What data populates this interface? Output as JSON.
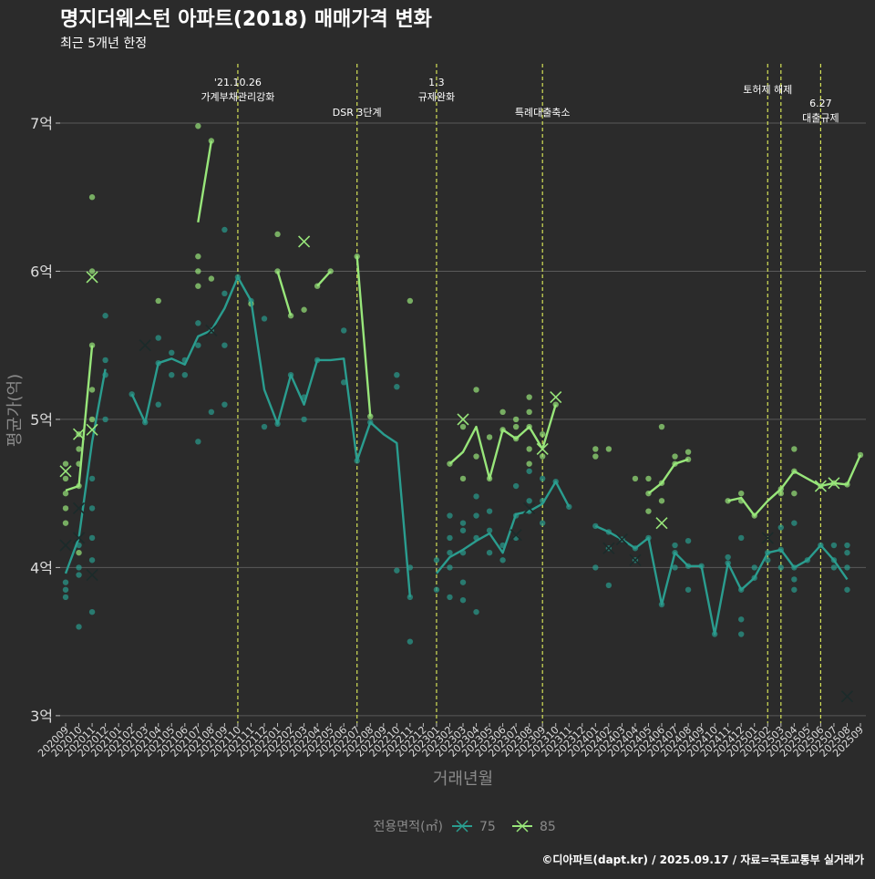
{
  "chart_data": {
    "type": "line",
    "title": "명지더웨스턴 아파트(2018) 매매가격 변화",
    "subtitle": "최근 5개년 한정",
    "xlabel": "거래년월",
    "ylabel": "평균가(억)",
    "ylim": [
      2.95,
      7.4
    ],
    "y_ticks": [
      3,
      4,
      5,
      6,
      7
    ],
    "y_tick_labels": [
      "3억",
      "4억",
      "5억",
      "6억",
      "7억"
    ],
    "categories": [
      "202009",
      "202010",
      "202011",
      "202012",
      "202101",
      "202102",
      "202103",
      "202104",
      "202105",
      "202106",
      "202107",
      "202108",
      "202109",
      "202110",
      "202111",
      "202112",
      "202201",
      "202202",
      "202203",
      "202204",
      "202205",
      "202206",
      "202207",
      "202208",
      "202209",
      "202210",
      "202211",
      "202212",
      "202301",
      "202302",
      "202303",
      "202304",
      "202305",
      "202306",
      "202307",
      "202308",
      "202309",
      "202310",
      "202311",
      "202312",
      "202401",
      "202402",
      "202403",
      "202404",
      "202405",
      "202406",
      "202407",
      "202408",
      "202409",
      "202410",
      "202411",
      "202412",
      "202501",
      "202502",
      "202503",
      "202504",
      "202505",
      "202506",
      "202507",
      "202508",
      "202509"
    ],
    "legend": {
      "title": "전용면적(㎡)",
      "position": "bottom",
      "entries": [
        "75",
        "85"
      ]
    },
    "colors": {
      "75": "#2a9d8f",
      "85": "#98e67a",
      "vline": "#d4e157",
      "grid": "#5a5a5a"
    },
    "series": [
      {
        "name": "75",
        "values": [
          3.96,
          4.2,
          4.85,
          5.34,
          null,
          5.17,
          4.98,
          5.38,
          5.41,
          5.37,
          5.56,
          5.6,
          5.75,
          5.96,
          5.8,
          5.2,
          4.97,
          5.3,
          5.1,
          5.4,
          5.4,
          5.41,
          4.72,
          4.98,
          4.9,
          4.84,
          3.8,
          null,
          3.96,
          4.07,
          4.12,
          4.18,
          4.23,
          4.1,
          4.36,
          4.38,
          4.43,
          4.58,
          4.41,
          null,
          4.28,
          4.24,
          4.19,
          4.13,
          4.2,
          3.75,
          4.1,
          4.01,
          4.01,
          3.55,
          4.03,
          3.85,
          3.93,
          4.1,
          4.12,
          4.0,
          4.05,
          4.15,
          4.05,
          3.92,
          null
        ]
      },
      {
        "name": "85",
        "values": [
          4.52,
          4.55,
          5.5,
          null,
          null,
          null,
          null,
          5.8,
          null,
          null,
          6.33,
          6.88,
          null,
          null,
          5.78,
          null,
          6.0,
          5.7,
          null,
          5.9,
          6.0,
          null,
          6.1,
          5.02,
          null,
          null,
          5.8,
          null,
          null,
          4.7,
          4.78,
          4.95,
          4.6,
          4.93,
          4.87,
          4.95,
          4.8,
          5.1,
          null,
          null,
          null,
          null,
          null,
          null,
          4.5,
          4.57,
          4.7,
          4.73,
          null,
          null,
          4.45,
          4.47,
          4.35,
          4.45,
          4.53,
          4.65,
          4.6,
          4.55,
          4.57,
          4.56,
          4.76
        ]
      }
    ],
    "points": {
      "75": [
        [
          0,
          3.8
        ],
        [
          0,
          3.85
        ],
        [
          0,
          3.9
        ],
        [
          1,
          3.6
        ],
        [
          1,
          3.95
        ],
        [
          1,
          4.0
        ],
        [
          1,
          4.15
        ],
        [
          2,
          3.7
        ],
        [
          2,
          4.05
        ],
        [
          2,
          4.2
        ],
        [
          2,
          4.4
        ],
        [
          2,
          4.6
        ],
        [
          3,
          5.0
        ],
        [
          3,
          5.3
        ],
        [
          3,
          5.4
        ],
        [
          3,
          5.7
        ],
        [
          5,
          5.17
        ],
        [
          6,
          4.98
        ],
        [
          7,
          5.1
        ],
        [
          7,
          5.38
        ],
        [
          7,
          5.55
        ],
        [
          8,
          5.3
        ],
        [
          8,
          5.45
        ],
        [
          9,
          5.3
        ],
        [
          9,
          5.4
        ],
        [
          10,
          4.85
        ],
        [
          10,
          5.5
        ],
        [
          10,
          5.65
        ],
        [
          11,
          5.05
        ],
        [
          11,
          5.6
        ],
        [
          12,
          5.1
        ],
        [
          12,
          5.5
        ],
        [
          12,
          5.85
        ],
        [
          12,
          6.28
        ],
        [
          13,
          5.96
        ],
        [
          14,
          5.8
        ],
        [
          15,
          4.95
        ],
        [
          15,
          5.68
        ],
        [
          16,
          4.97
        ],
        [
          17,
          5.3
        ],
        [
          18,
          5.0
        ],
        [
          18,
          5.15
        ],
        [
          19,
          5.4
        ],
        [
          21,
          5.25
        ],
        [
          21,
          5.6
        ],
        [
          22,
          4.72
        ],
        [
          23,
          4.98
        ],
        [
          25,
          3.98
        ],
        [
          25,
          5.22
        ],
        [
          25,
          5.3
        ],
        [
          26,
          3.5
        ],
        [
          26,
          3.8
        ],
        [
          26,
          4.0
        ],
        [
          28,
          3.85
        ],
        [
          28,
          4.05
        ],
        [
          29,
          3.8
        ],
        [
          29,
          4.0
        ],
        [
          29,
          4.1
        ],
        [
          29,
          4.2
        ],
        [
          29,
          4.35
        ],
        [
          30,
          3.78
        ],
        [
          30,
          3.9
        ],
        [
          30,
          4.1
        ],
        [
          30,
          4.25
        ],
        [
          30,
          4.3
        ],
        [
          31,
          3.7
        ],
        [
          31,
          4.2
        ],
        [
          31,
          4.35
        ],
        [
          31,
          4.48
        ],
        [
          32,
          4.1
        ],
        [
          32,
          4.25
        ],
        [
          32,
          4.38
        ],
        [
          33,
          4.05
        ],
        [
          33,
          4.15
        ],
        [
          34,
          4.2
        ],
        [
          34,
          4.35
        ],
        [
          34,
          4.55
        ],
        [
          35,
          4.38
        ],
        [
          35,
          4.45
        ],
        [
          35,
          4.65
        ],
        [
          36,
          4.3
        ],
        [
          36,
          4.45
        ],
        [
          36,
          4.6
        ],
        [
          37,
          4.58
        ],
        [
          38,
          4.41
        ],
        [
          40,
          4.0
        ],
        [
          40,
          4.28
        ],
        [
          41,
          3.88
        ],
        [
          41,
          4.13
        ],
        [
          41,
          4.24
        ],
        [
          42,
          4.19
        ],
        [
          43,
          4.05
        ],
        [
          43,
          4.13
        ],
        [
          44,
          4.2
        ],
        [
          45,
          3.75
        ],
        [
          46,
          4.0
        ],
        [
          46,
          4.1
        ],
        [
          46,
          4.15
        ],
        [
          47,
          3.85
        ],
        [
          47,
          4.01
        ],
        [
          47,
          4.18
        ],
        [
          48,
          4.01
        ],
        [
          49,
          3.55
        ],
        [
          50,
          4.03
        ],
        [
          50,
          4.07
        ],
        [
          51,
          3.55
        ],
        [
          51,
          3.65
        ],
        [
          51,
          3.85
        ],
        [
          51,
          4.2
        ],
        [
          52,
          3.93
        ],
        [
          52,
          4.0
        ],
        [
          53,
          4.05
        ],
        [
          53,
          4.1
        ],
        [
          54,
          4.0
        ],
        [
          54,
          4.12
        ],
        [
          54,
          4.27
        ],
        [
          55,
          3.85
        ],
        [
          55,
          3.92
        ],
        [
          55,
          4.0
        ],
        [
          55,
          4.3
        ],
        [
          56,
          4.05
        ],
        [
          57,
          4.15
        ],
        [
          58,
          4.0
        ],
        [
          58,
          4.05
        ],
        [
          58,
          4.15
        ],
        [
          59,
          3.85
        ],
        [
          59,
          4.0
        ],
        [
          59,
          4.1
        ],
        [
          59,
          4.15
        ]
      ],
      "85": [
        [
          0,
          4.3
        ],
        [
          0,
          4.4
        ],
        [
          0,
          4.5
        ],
        [
          0,
          4.6
        ],
        [
          0,
          4.7
        ],
        [
          1,
          4.1
        ],
        [
          1,
          4.55
        ],
        [
          1,
          4.7
        ],
        [
          1,
          4.8
        ],
        [
          1,
          4.9
        ],
        [
          2,
          5.0
        ],
        [
          2,
          5.2
        ],
        [
          2,
          5.5
        ],
        [
          2,
          6.0
        ],
        [
          2,
          6.5
        ],
        [
          7,
          5.8
        ],
        [
          10,
          5.9
        ],
        [
          10,
          6.0
        ],
        [
          10,
          6.1
        ],
        [
          10,
          6.98
        ],
        [
          11,
          5.95
        ],
        [
          11,
          6.88
        ],
        [
          14,
          5.78
        ],
        [
          16,
          6.0
        ],
        [
          16,
          6.25
        ],
        [
          17,
          5.7
        ],
        [
          18,
          5.74
        ],
        [
          19,
          5.9
        ],
        [
          20,
          6.0
        ],
        [
          22,
          6.1
        ],
        [
          23,
          5.02
        ],
        [
          26,
          5.8
        ],
        [
          29,
          4.7
        ],
        [
          30,
          4.6
        ],
        [
          30,
          4.95
        ],
        [
          31,
          4.75
        ],
        [
          31,
          5.2
        ],
        [
          32,
          4.6
        ],
        [
          32,
          4.88
        ],
        [
          33,
          4.93
        ],
        [
          33,
          5.05
        ],
        [
          34,
          4.87
        ],
        [
          34,
          4.95
        ],
        [
          34,
          5.0
        ],
        [
          35,
          4.7
        ],
        [
          35,
          4.8
        ],
        [
          35,
          4.95
        ],
        [
          35,
          5.05
        ],
        [
          35,
          5.15
        ],
        [
          36,
          4.75
        ],
        [
          36,
          4.9
        ],
        [
          37,
          5.1
        ],
        [
          40,
          4.75
        ],
        [
          40,
          4.8
        ],
        [
          41,
          4.8
        ],
        [
          43,
          4.6
        ],
        [
          44,
          4.38
        ],
        [
          44,
          4.5
        ],
        [
          44,
          4.6
        ],
        [
          45,
          4.45
        ],
        [
          45,
          4.57
        ],
        [
          45,
          4.95
        ],
        [
          46,
          4.7
        ],
        [
          46,
          4.75
        ],
        [
          47,
          4.73
        ],
        [
          47,
          4.78
        ],
        [
          50,
          4.45
        ],
        [
          51,
          4.45
        ],
        [
          51,
          4.5
        ],
        [
          52,
          4.35
        ],
        [
          54,
          4.5
        ],
        [
          54,
          4.53
        ],
        [
          55,
          4.5
        ],
        [
          55,
          4.65
        ],
        [
          55,
          4.8
        ],
        [
          57,
          4.55
        ],
        [
          58,
          4.57
        ],
        [
          59,
          4.56
        ],
        [
          60,
          4.76
        ]
      ]
    },
    "crosses": {
      "75": [
        [
          0,
          4.15
        ],
        [
          1,
          4.2
        ],
        [
          1,
          4.4
        ],
        [
          2,
          3.95
        ],
        [
          6,
          5.5
        ],
        [
          11,
          5.6
        ],
        [
          34,
          4.22
        ],
        [
          35,
          4.4
        ],
        [
          41,
          4.13
        ],
        [
          42,
          4.19
        ],
        [
          43,
          4.05
        ],
        [
          53,
          4.2
        ],
        [
          59,
          3.13
        ]
      ],
      "85": [
        [
          0,
          4.65
        ],
        [
          1,
          4.9
        ],
        [
          2,
          4.93
        ],
        [
          2,
          5.96
        ],
        [
          18,
          6.2
        ],
        [
          30,
          5.0
        ],
        [
          36,
          4.8
        ],
        [
          37,
          5.15
        ],
        [
          45,
          4.3
        ],
        [
          57,
          4.55
        ],
        [
          58,
          4.57
        ]
      ]
    },
    "annotations": [
      {
        "x": 13,
        "lines": [
          "'21.10.26",
          "가계부채관리강화"
        ],
        "row": "top"
      },
      {
        "x": 22,
        "lines": [
          "DSR 3단계"
        ],
        "row": "mid"
      },
      {
        "x": 28,
        "lines": [
          "1.3",
          "규제완화"
        ],
        "row": "top"
      },
      {
        "x": 36,
        "lines": [
          "특례대출축소"
        ],
        "row": "mid"
      },
      {
        "x": 53,
        "lines": [
          "토허제 해제"
        ],
        "row": "top2"
      },
      {
        "x": 54,
        "lines": [],
        "row": "none"
      },
      {
        "x": 57,
        "lines": [
          "6.27",
          "대출규제"
        ],
        "row": "low"
      }
    ],
    "caption": "©디아파트(dapt.kr) / 2025.09.17 / 자료=국토교통부 실거래가"
  }
}
